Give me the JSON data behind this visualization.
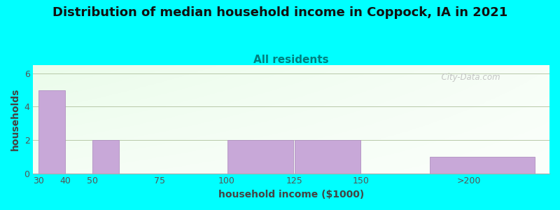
{
  "title": "Distribution of median household income in Coppock, IA in 2021",
  "subtitle": "All residents",
  "xlabel": "household income ($1000)",
  "ylabel": "households",
  "background_color": "#00FFFF",
  "bar_color": "#c8a8d8",
  "bar_edge_color": "#b090c0",
  "categories": [
    "30",
    "40",
    "50",
    "75",
    "100",
    "125",
    "150",
    ">200"
  ],
  "values": [
    5,
    0,
    2,
    0,
    2,
    2,
    0,
    1
  ],
  "tick_positions": [
    0,
    10,
    20,
    45,
    70,
    95,
    120,
    160
  ],
  "bar_left_edges": [
    0,
    10,
    20,
    45,
    70,
    95,
    120,
    145
  ],
  "bar_rights": [
    10,
    20,
    30,
    55,
    95,
    120,
    145,
    185
  ],
  "xlim": [
    -2,
    190
  ],
  "ylim": [
    0,
    6.5
  ],
  "yticks": [
    0,
    2,
    4,
    6
  ],
  "title_fontsize": 13,
  "subtitle_fontsize": 11,
  "axis_label_fontsize": 10,
  "tick_fontsize": 9,
  "title_color": "#111111",
  "subtitle_color": "#008080",
  "axis_label_color": "#444444",
  "tick_color": "#555555",
  "watermark": "  City-Data.com"
}
